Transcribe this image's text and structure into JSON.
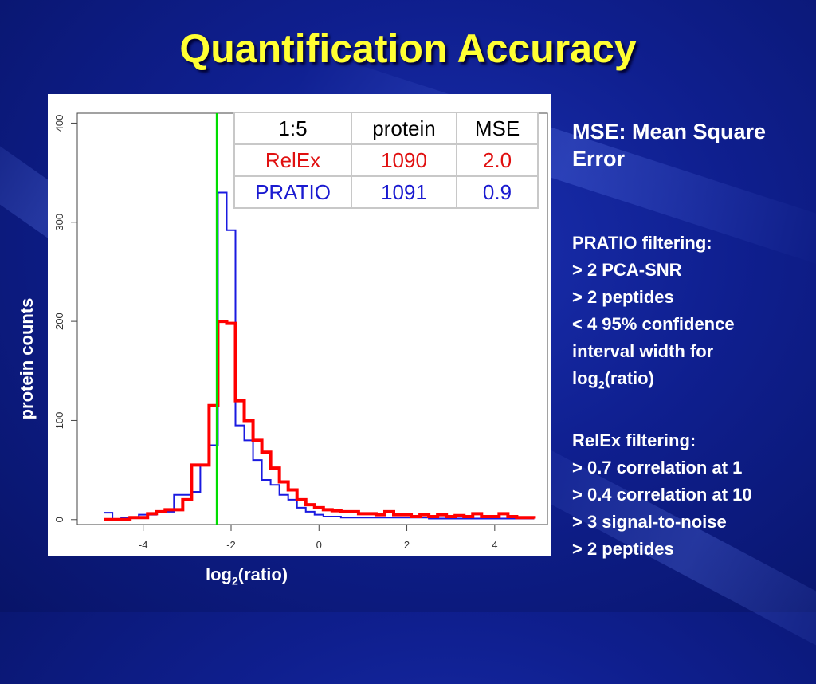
{
  "title": "Quantification Accuracy",
  "ylabel": "protein counts",
  "xlabel_main": "log",
  "xlabel_sub": "2",
  "xlabel_tail": "(ratio)",
  "mse_note": "MSE: Mean Square Error",
  "pratio_filter": {
    "heading": "PRATIO filtering:",
    "lines": [
      "> 2 PCA-SNR",
      "> 2 peptides",
      "< 4 95% confidence",
      "interval width for"
    ],
    "last_main": "log",
    "last_sub": "2",
    "last_tail": "(ratio)"
  },
  "relex_filter": {
    "heading": "RelEx filtering:",
    "lines": [
      "> 0.7 correlation at 1",
      "> 0.4 correlation at 10",
      "> 3 signal-to-noise",
      "> 2 peptides"
    ]
  },
  "table": {
    "header": [
      "1:5",
      "protein",
      "MSE"
    ],
    "rows": [
      [
        "RelEx",
        "1090",
        "2.0"
      ],
      [
        "PRATIO",
        "1091",
        "0.9"
      ]
    ]
  },
  "colors": {
    "relex": "#ff0000",
    "pratio": "#1a1ae0",
    "reference": "#00dd00",
    "title": "#ffff33"
  },
  "chart_data": {
    "type": "line",
    "xlim": [
      -5.5,
      5.2
    ],
    "ylim": [
      -5,
      410
    ],
    "x_ticks": [
      -4,
      -2,
      0,
      2,
      4
    ],
    "x_tick_labels": [
      "-4",
      "-2",
      "0",
      "2",
      "4"
    ],
    "y_ticks": [
      0,
      100,
      200,
      300,
      400
    ],
    "y_tick_labels": [
      "0",
      "100",
      "200",
      "300",
      "400"
    ],
    "reference_line_x": -2.32,
    "series": [
      {
        "name": "PRATIO",
        "step": true,
        "x": [
          -4.9,
          -4.7,
          -4.5,
          -4.3,
          -4.1,
          -3.9,
          -3.7,
          -3.5,
          -3.3,
          -3.1,
          -2.9,
          -2.7,
          -2.5,
          -2.3,
          -2.1,
          -1.9,
          -1.7,
          -1.5,
          -1.3,
          -1.1,
          -0.9,
          -0.7,
          -0.5,
          -0.3,
          -0.1,
          0.1,
          0.5,
          1.0,
          1.5,
          2.0,
          2.5,
          3.0,
          3.5,
          4.0,
          4.5,
          4.9
        ],
        "values": [
          7,
          0,
          2,
          2,
          5,
          5,
          8,
          8,
          25,
          25,
          28,
          55,
          75,
          330,
          292,
          95,
          80,
          60,
          40,
          35,
          25,
          20,
          12,
          8,
          5,
          3,
          2,
          2,
          2,
          2,
          1,
          1,
          1,
          1,
          1,
          1
        ]
      },
      {
        "name": "RelEx",
        "step": true,
        "x": [
          -4.9,
          -4.7,
          -4.5,
          -4.3,
          -4.1,
          -3.9,
          -3.7,
          -3.5,
          -3.3,
          -3.1,
          -2.9,
          -2.7,
          -2.5,
          -2.3,
          -2.1,
          -1.9,
          -1.7,
          -1.5,
          -1.3,
          -1.1,
          -0.9,
          -0.7,
          -0.5,
          -0.3,
          -0.1,
          0.1,
          0.3,
          0.5,
          0.7,
          0.9,
          1.1,
          1.3,
          1.5,
          1.7,
          1.9,
          2.1,
          2.3,
          2.5,
          2.7,
          2.9,
          3.1,
          3.3,
          3.5,
          3.7,
          3.9,
          4.1,
          4.3,
          4.5,
          4.7,
          4.9
        ],
        "values": [
          0,
          0,
          0,
          2,
          2,
          6,
          8,
          10,
          10,
          20,
          55,
          55,
          115,
          200,
          198,
          120,
          100,
          80,
          68,
          52,
          38,
          30,
          20,
          15,
          12,
          10,
          9,
          8,
          8,
          6,
          6,
          5,
          8,
          5,
          5,
          3,
          5,
          3,
          5,
          3,
          4,
          3,
          6,
          3,
          3,
          6,
          3,
          2,
          2,
          1
        ]
      }
    ]
  }
}
